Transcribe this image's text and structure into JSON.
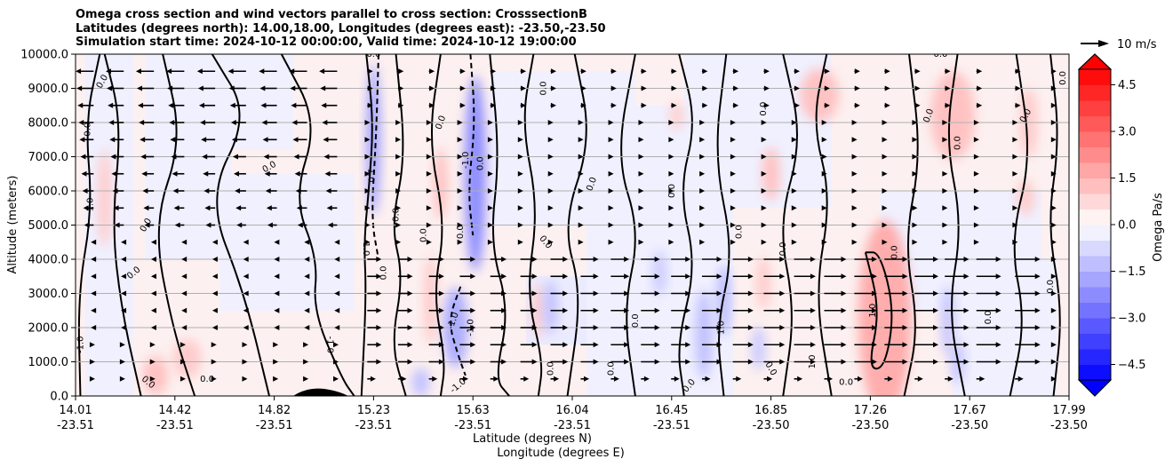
{
  "title_lines": [
    "Omega cross section and wind vectors parallel to cross section: CrosssectionB",
    "Latitudes (degrees north): 14.00,18.00, Longitudes (degrees east): -23.50,-23.50",
    "Simulation start time: 2024-10-12 00:00:00, Valid time: 2024-10-12 19:00:00"
  ],
  "quiver_key": {
    "label": "10 m/s"
  },
  "chart_data": {
    "type": "heatmap",
    "title": "Omega cross section and wind vectors parallel to cross section: CrosssectionB",
    "xlabel_line1": "Latitude (degrees N)",
    "xlabel_line2": "Longitude (degrees E)",
    "ylabel": "Altitude (meters)",
    "ylim": [
      0,
      10000
    ],
    "yticks": [
      "0.0",
      "1000.0",
      "2000.0",
      "3000.0",
      "4000.0",
      "5000.0",
      "6000.0",
      "7000.0",
      "8000.0",
      "9000.0",
      "10000.0"
    ],
    "xticks": [
      {
        "lat": "14.01",
        "lon": "-23.51"
      },
      {
        "lat": "14.42",
        "lon": "-23.51"
      },
      {
        "lat": "14.82",
        "lon": "-23.51"
      },
      {
        "lat": "15.23",
        "lon": "-23.51"
      },
      {
        "lat": "15.63",
        "lon": "-23.51"
      },
      {
        "lat": "16.04",
        "lon": "-23.51"
      },
      {
        "lat": "16.45",
        "lon": "-23.51"
      },
      {
        "lat": "16.85",
        "lon": "-23.50"
      },
      {
        "lat": "17.26",
        "lon": "-23.50"
      },
      {
        "lat": "17.67",
        "lon": "-23.50"
      },
      {
        "lat": "17.99",
        "lon": "-23.50"
      }
    ],
    "grid": "horizontal",
    "colorbar": {
      "label": "Omega Pa/s",
      "range": [
        -5.0,
        5.0
      ],
      "ticks": [
        "4.5",
        "3.0",
        "1.5",
        "0.0",
        "−1.5",
        "−3.0",
        "−4.5"
      ],
      "tick_values": [
        4.5,
        3.0,
        1.5,
        0.0,
        -1.5,
        -3.0,
        -4.5
      ],
      "colormap": "bwr"
    },
    "contour_labels": [
      "0.0",
      "-1.0",
      "1.0"
    ],
    "features": [
      {
        "kind": "negative_core",
        "lat": 15.63,
        "alt_range": [
          4500,
          10000
        ],
        "omega": -2.0
      },
      {
        "kind": "negative_core",
        "lat": 15.23,
        "alt_range": [
          5000,
          10000
        ],
        "omega": -1.5
      },
      {
        "kind": "negative_core",
        "lat": 15.55,
        "alt_range": [
          1000,
          3000
        ],
        "omega": -1.5
      },
      {
        "kind": "positive_core",
        "lat": 17.2,
        "alt_range": [
          500,
          4500
        ],
        "omega": 1.5
      },
      {
        "kind": "positive_core",
        "lat": 17.9,
        "alt_range": [
          7000,
          9500
        ],
        "omega": 0.8
      },
      {
        "kind": "terrain",
        "lat": 15.0,
        "max_alt": 200
      }
    ],
    "wind": {
      "description": "Wind vectors parallel to cross section; easterly (leftward) aloft north to 15.2 N, strong westerly (rightward) 1000-4000 m between 15.3 N and 17.9 N",
      "reference_speed_ms": 10
    }
  }
}
